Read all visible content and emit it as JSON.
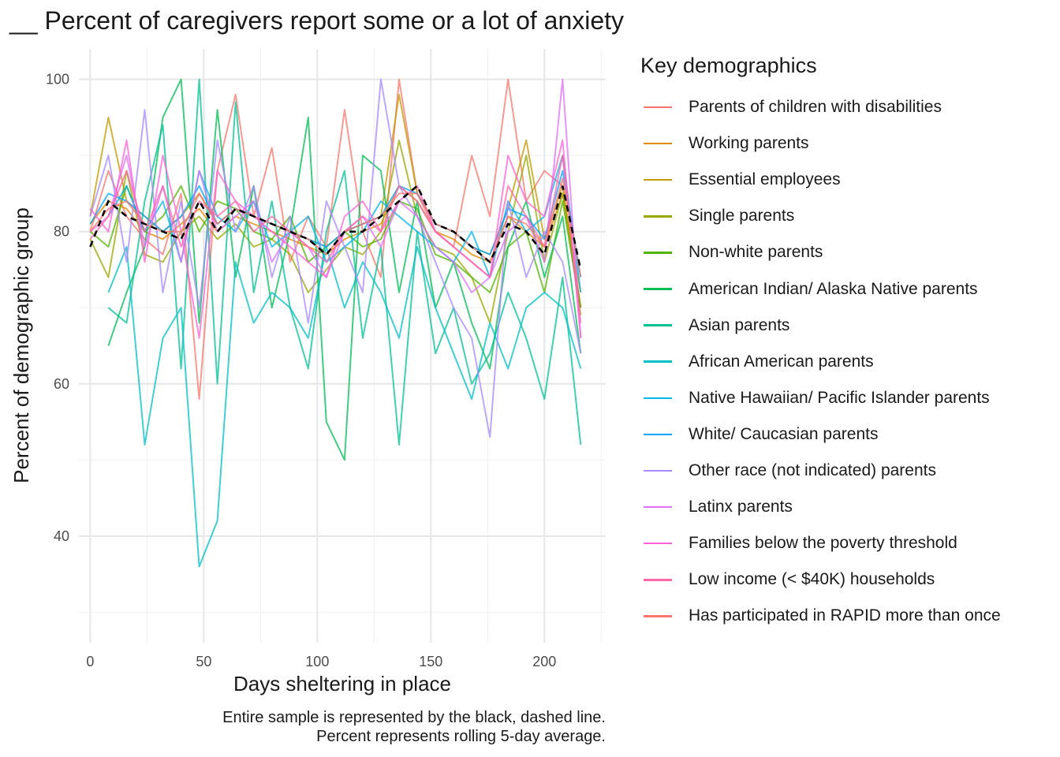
{
  "chart_data": {
    "type": "line",
    "title": "__ Percent of caregivers report some or a lot of anxiety",
    "xlabel": "Days sheltering in place",
    "ylabel": "Percent of demographic group",
    "caption": [
      "Entire sample is represented by the black, dashed line.",
      "Percent represents rolling 5-day average."
    ],
    "x_ticks": [
      "0",
      "50",
      "100",
      "150",
      "200"
    ],
    "y_ticks": [
      "40",
      "60",
      "80",
      "100"
    ],
    "xlim": [
      -5,
      227
    ],
    "ylim": [
      26,
      104
    ],
    "grid": true,
    "legend_title": "Key demographics",
    "legend_position": "right",
    "x": [
      0,
      8,
      16,
      24,
      32,
      40,
      48,
      56,
      64,
      72,
      80,
      88,
      96,
      104,
      112,
      120,
      128,
      136,
      144,
      152,
      160,
      168,
      176,
      184,
      192,
      200,
      208,
      216
    ],
    "overall": {
      "name": "Entire sample",
      "style": "black dashed",
      "values": [
        78,
        84,
        82,
        81,
        80,
        79,
        84,
        80,
        83,
        82,
        81,
        80,
        79,
        77,
        80,
        80,
        82,
        84,
        86,
        81,
        80,
        78,
        76,
        81,
        80,
        77,
        86,
        75
      ]
    },
    "series": [
      {
        "name": "Parents of children with disabilities",
        "color": "#F8766D",
        "values": [
          80,
          88,
          82,
          79,
          77,
          85,
          58,
          88,
          98,
          82,
          91,
          76,
          82,
          78,
          96,
          80,
          74,
          100,
          85,
          80,
          78,
          90,
          82,
          100,
          84,
          88,
          86,
          70
        ]
      },
      {
        "name": "Working parents",
        "color": "#E38900",
        "values": [
          81,
          84,
          83,
          80,
          79,
          81,
          83,
          80,
          82,
          81,
          80,
          79,
          78,
          77,
          79,
          80,
          81,
          86,
          84,
          80,
          79,
          77,
          76,
          82,
          80,
          78,
          85,
          72
        ]
      },
      {
        "name": "Essential employees",
        "color": "#C49A00",
        "values": [
          82,
          95,
          84,
          82,
          80,
          82,
          85,
          81,
          83,
          82,
          81,
          80,
          79,
          78,
          80,
          81,
          82,
          98,
          85,
          81,
          80,
          78,
          77,
          83,
          92,
          79,
          86,
          70
        ]
      },
      {
        "name": "Single parents",
        "color": "#99A800",
        "values": [
          79,
          74,
          88,
          77,
          76,
          80,
          82,
          79,
          81,
          78,
          79,
          77,
          72,
          75,
          78,
          77,
          80,
          92,
          82,
          78,
          77,
          74,
          68,
          80,
          90,
          76,
          85,
          69
        ]
      },
      {
        "name": "Non-white parents",
        "color": "#53B400",
        "values": [
          80,
          78,
          86,
          80,
          82,
          86,
          80,
          84,
          83,
          80,
          79,
          82,
          76,
          78,
          80,
          78,
          79,
          84,
          83,
          77,
          76,
          74,
          72,
          78,
          80,
          72,
          84,
          70
        ]
      },
      {
        "name": "American Indian/ Alaska Native parents",
        "color": "#00BC56",
        "values": [
          null,
          65,
          72,
          78,
          95,
          100,
          68,
          96,
          74,
          86,
          70,
          80,
          95,
          55,
          50,
          90,
          88,
          72,
          84,
          70,
          76,
          68,
          62,
          78,
          84,
          74,
          82,
          64
        ]
      },
      {
        "name": "Asian parents",
        "color": "#00C094",
        "values": [
          null,
          70,
          68,
          84,
          94,
          62,
          100,
          60,
          97,
          72,
          84,
          70,
          62,
          80,
          88,
          66,
          78,
          52,
          80,
          64,
          70,
          60,
          64,
          72,
          66,
          58,
          74,
          52
        ]
      },
      {
        "name": "African American parents",
        "color": "#00BFC4",
        "values": [
          null,
          72,
          78,
          52,
          66,
          70,
          36,
          42,
          76,
          68,
          72,
          70,
          66,
          78,
          70,
          76,
          72,
          66,
          78,
          70,
          64,
          58,
          68,
          62,
          70,
          72,
          70,
          62
        ]
      },
      {
        "name": "Native Hawaiian/ Pacific Islander parents",
        "color": "#00B6EB",
        "values": [
          null,
          82,
          86,
          80,
          84,
          76,
          88,
          82,
          80,
          84,
          78,
          80,
          82,
          76,
          78,
          80,
          84,
          82,
          80,
          78,
          76,
          80,
          74,
          84,
          80,
          82,
          90,
          72
        ]
      },
      {
        "name": "White/ Caucasian parents",
        "color": "#06A4FF",
        "values": [
          81,
          85,
          84,
          82,
          80,
          82,
          86,
          81,
          83,
          82,
          81,
          80,
          79,
          78,
          80,
          81,
          82,
          86,
          85,
          81,
          80,
          78,
          77,
          83,
          82,
          79,
          88,
          74
        ]
      },
      {
        "name": "Other race (not indicated) parents",
        "color": "#A58AFF",
        "values": [
          82,
          90,
          76,
          96,
          72,
          84,
          70,
          92,
          80,
          86,
          74,
          82,
          68,
          84,
          78,
          72,
          100,
          86,
          82,
          76,
          70,
          66,
          53,
          84,
          74,
          80,
          76,
          64
        ]
      },
      {
        "name": "Latinx parents",
        "color": "#DF70F8",
        "values": [
          80,
          82,
          90,
          78,
          86,
          76,
          88,
          80,
          82,
          84,
          76,
          80,
          78,
          74,
          80,
          82,
          78,
          84,
          82,
          78,
          76,
          72,
          74,
          80,
          82,
          76,
          100,
          66
        ]
      },
      {
        "name": "Families below the poverty threshold",
        "color": "#FB61D7",
        "values": [
          83,
          80,
          92,
          76,
          90,
          80,
          66,
          88,
          84,
          82,
          80,
          78,
          76,
          74,
          82,
          84,
          80,
          84,
          86,
          80,
          78,
          76,
          74,
          90,
          84,
          82,
          92,
          66
        ]
      },
      {
        "name": "Low income (< $40K) households",
        "color": "#FF66A8",
        "values": [
          79,
          82,
          88,
          80,
          86,
          78,
          84,
          82,
          84,
          80,
          82,
          80,
          78,
          76,
          80,
          82,
          80,
          86,
          84,
          80,
          78,
          76,
          74,
          86,
          82,
          78,
          90,
          68
        ]
      },
      {
        "name": "Has participated in RAPID more than once",
        "color": "#F8766D",
        "values": [
          80,
          83,
          84,
          81,
          80,
          80,
          85,
          81,
          83,
          82,
          81,
          80,
          79,
          77,
          80,
          81,
          82,
          85,
          85,
          81,
          80,
          78,
          76,
          82,
          81,
          78,
          87,
          74
        ]
      }
    ]
  }
}
